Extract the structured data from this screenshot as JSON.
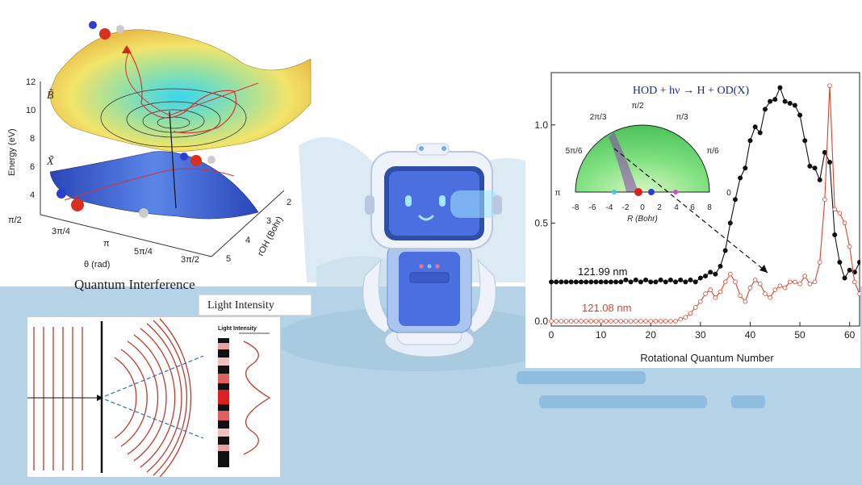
{
  "pes_plot": {
    "state_upper": "B̃",
    "state_lower": "X̃",
    "energy_axis_label": "Energy (eV)",
    "energy_ticks": [
      "12",
      "10",
      "8",
      "6",
      "4"
    ],
    "theta_ticks": [
      "π/2",
      "3π/4",
      "π",
      "5π/4",
      "3π/2"
    ],
    "theta_label": "θ (rad)",
    "roh_ticks": [
      "2",
      "3",
      "4",
      "5"
    ],
    "roh_label": "rOH (Bohr)"
  },
  "quantum_interference": {
    "title": "Quantum Interference",
    "light_intensity_box": "Light Intensity",
    "light_intensity_small": "Light Intensity"
  },
  "rotational_plot": {
    "reaction_title": "HOD + hν → H + OD(X)",
    "x_label": "Rotational Quantum Number",
    "x_ticks": [
      "0",
      "10",
      "20",
      "30",
      "40",
      "50",
      "60"
    ],
    "y_ticks": [
      "0.0",
      "0.5",
      "1.0"
    ],
    "series_black_label": "121.99 nm",
    "series_red_label": "121.08 nm",
    "polar_angle_labels": [
      "π/2",
      "2π/3",
      "π/3",
      "5π/6",
      "π/6",
      "π",
      "0"
    ],
    "polar_r_ticks": [
      "-8",
      "-6",
      "-4",
      "-2",
      "0",
      "2",
      "4",
      "6",
      "8"
    ],
    "polar_r_label": "R (Bohr)"
  },
  "colors": {
    "sky": "#b7d4e6",
    "robot_blue": "#4c6fe0",
    "black_series": "#111111",
    "red_series": "#e0402c"
  },
  "chart_data": {
    "type": "line",
    "x": [
      0,
      1,
      2,
      3,
      4,
      5,
      6,
      7,
      8,
      9,
      10,
      11,
      12,
      13,
      14,
      15,
      16,
      17,
      18,
      19,
      20,
      21,
      22,
      23,
      24,
      25,
      26,
      27,
      28,
      29,
      30,
      31,
      32,
      33,
      34,
      35,
      36,
      37,
      38,
      39,
      40,
      41,
      42,
      43,
      44,
      45,
      46,
      47,
      48,
      49,
      50,
      51,
      52,
      53,
      54,
      55,
      56,
      57,
      58,
      59,
      60,
      61,
      62
    ],
    "series": [
      {
        "name": "121.99 nm",
        "values": [
          0.2,
          0.2,
          0.2,
          0.2,
          0.2,
          0.2,
          0.2,
          0.2,
          0.2,
          0.2,
          0.2,
          0.2,
          0.2,
          0.2,
          0.2,
          0.21,
          0.2,
          0.21,
          0.2,
          0.21,
          0.2,
          0.2,
          0.21,
          0.2,
          0.21,
          0.2,
          0.21,
          0.2,
          0.21,
          0.2,
          0.22,
          0.23,
          0.25,
          0.24,
          0.28,
          0.36,
          0.5,
          0.62,
          0.73,
          0.78,
          0.92,
          0.99,
          0.96,
          1.08,
          1.12,
          1.13,
          1.19,
          1.12,
          1.11,
          1.1,
          1.05,
          0.92,
          0.79,
          0.78,
          0.72,
          0.86,
          0.81,
          0.44,
          0.3,
          0.22,
          0.26,
          0.25,
          0.3
        ]
      },
      {
        "name": "121.08 nm",
        "values": [
          0.0,
          0.0,
          0.0,
          0.0,
          0.0,
          0.0,
          0.0,
          0.0,
          0.0,
          0.0,
          0.0,
          0.0,
          0.0,
          0.0,
          0.0,
          0.0,
          0.0,
          0.0,
          0.0,
          0.0,
          0.0,
          0.0,
          0.0,
          0.0,
          0.0,
          0.0,
          0.01,
          0.02,
          0.04,
          0.07,
          0.1,
          0.14,
          0.16,
          0.12,
          0.15,
          0.2,
          0.24,
          0.2,
          0.13,
          0.1,
          0.17,
          0.21,
          0.19,
          0.14,
          0.12,
          0.16,
          0.18,
          0.17,
          0.2,
          0.2,
          0.19,
          0.23,
          0.19,
          0.2,
          0.3,
          0.62,
          1.2,
          0.57,
          0.55,
          0.5,
          0.38,
          0.2,
          0.14
        ]
      }
    ],
    "xlabel": "Rotational Quantum Number",
    "xlim": [
      0,
      62
    ],
    "ylim": [
      0,
      1.25
    ],
    "grid": false,
    "legend": "inline labels"
  }
}
